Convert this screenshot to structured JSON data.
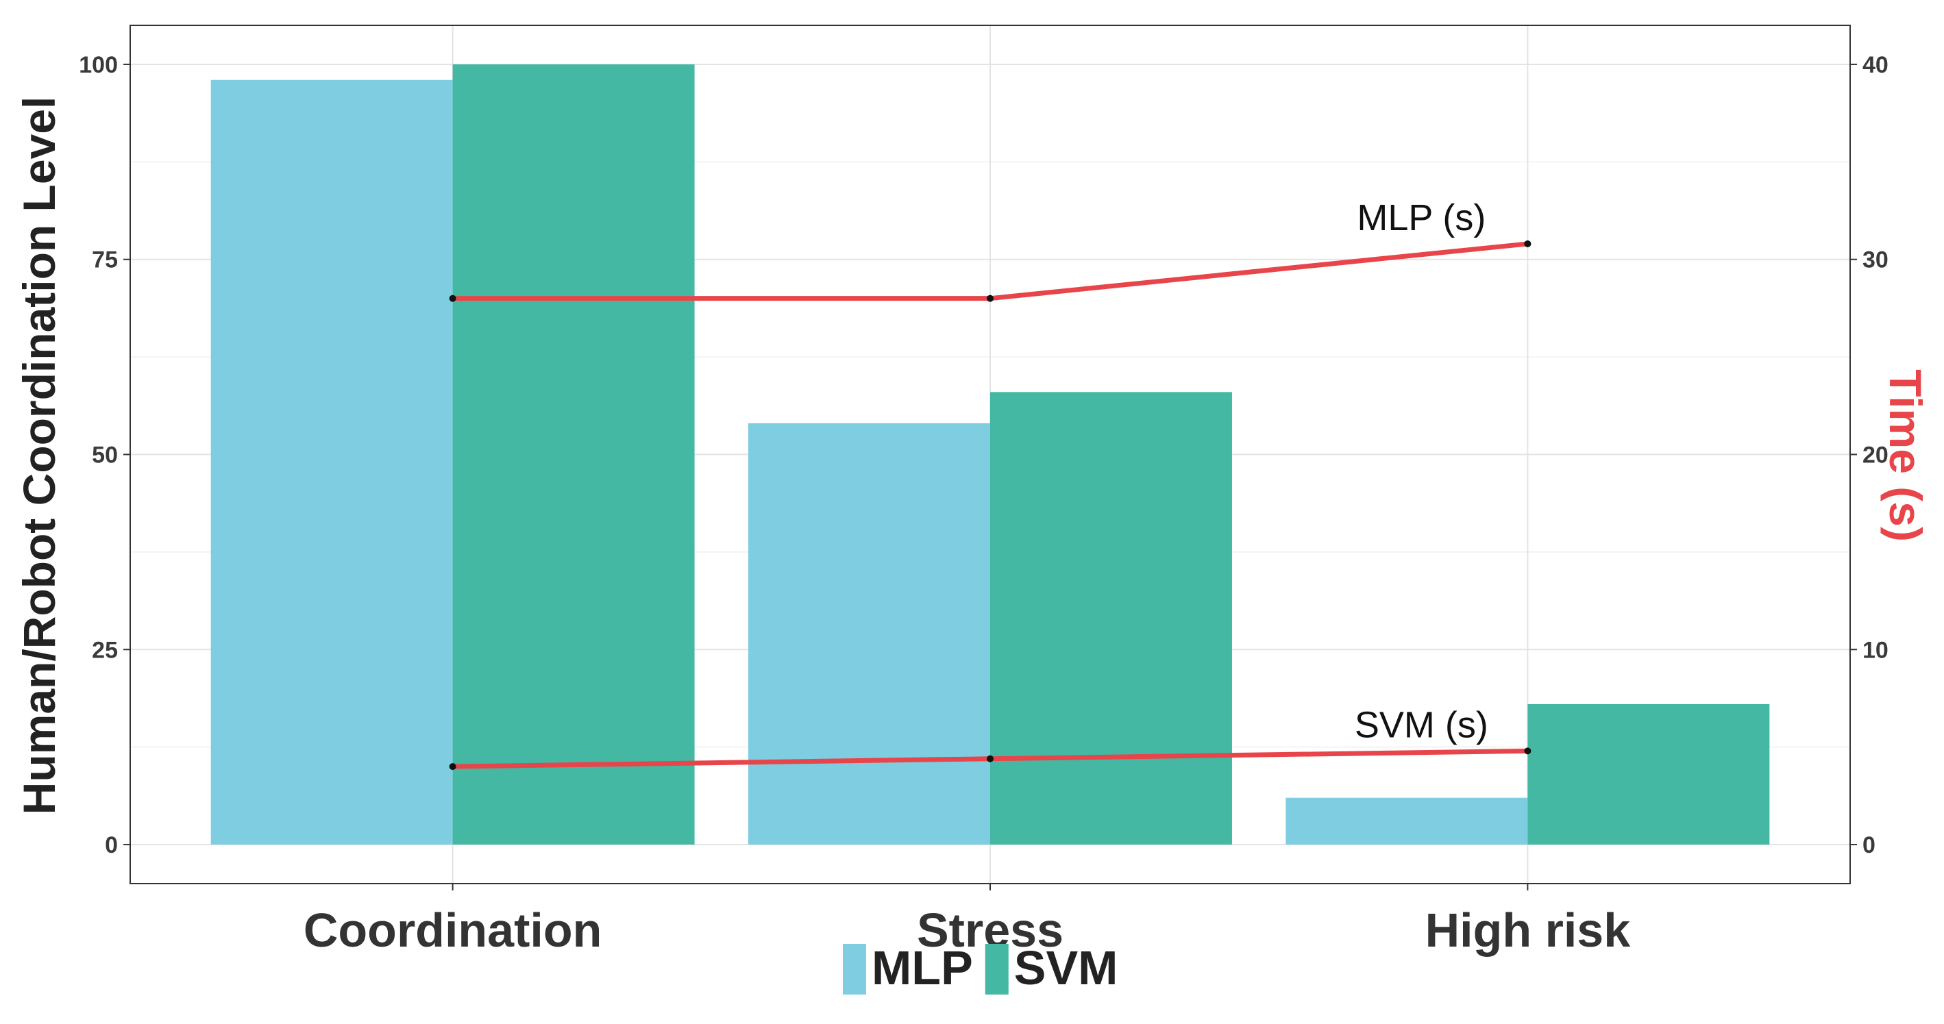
{
  "chart_data": {
    "type": "bar",
    "categories": [
      "Coordination",
      "Stress",
      "High risk"
    ],
    "series": [
      {
        "name": "MLP",
        "color": "#7ecde1",
        "values": [
          98,
          54,
          6
        ]
      },
      {
        "name": "SVM",
        "color": "#45b8a3",
        "values": [
          100,
          58,
          18
        ]
      }
    ],
    "ylabel": "Human/Robot Coordination Level",
    "ylim": [
      -5,
      105
    ],
    "yticks": [
      0,
      25,
      50,
      75,
      100
    ],
    "y2label": "Time (s)",
    "y2label_color": "#e8454a",
    "y2lim": [
      -2,
      42
    ],
    "y2ticks": [
      0,
      10,
      20,
      30,
      40
    ],
    "lines": [
      {
        "name": "MLP (s)",
        "label": "MLP (s)",
        "color": "#e8454a",
        "values": [
          28,
          28,
          30.8
        ]
      },
      {
        "name": "SVM (s)",
        "label": "SVM (s)",
        "color": "#e8454a",
        "values": [
          4,
          4.4,
          4.8
        ]
      }
    ],
    "legend": {
      "position": "bottom",
      "items": [
        "MLP",
        "SVM"
      ]
    },
    "grid": true
  }
}
